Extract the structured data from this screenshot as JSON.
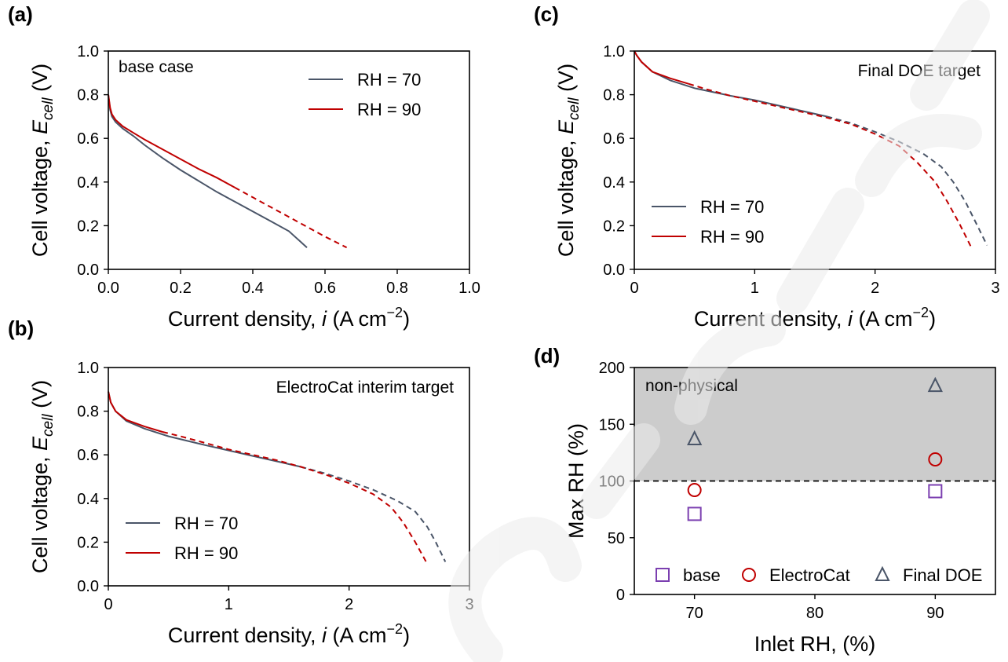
{
  "colors": {
    "rh70": "#4a5568",
    "rh90": "#c00000",
    "base": "#7b3fb0",
    "electrocat": "#c00000",
    "finaldoe": "#4a5568",
    "shade": "#cccccc"
  },
  "chart_data": [
    {
      "id": "a",
      "type": "line",
      "panel_label": "(a)",
      "annotation": "base case",
      "annotation_position": "top-left",
      "xlabel": "Current density, ",
      "xlabel_italic": "i",
      "xlabel_unit": " (A cm",
      "xlabel_sup": "−2",
      "xlabel_close": ")",
      "ylabel": "Cell voltage, ",
      "ylabel_italic": "E",
      "ylabel_sub": "cell",
      "ylabel_unit": " (V)",
      "xlim": [
        0,
        1.0
      ],
      "ylim": [
        0,
        1.0
      ],
      "xticks": [
        "0.0",
        "0.2",
        "0.4",
        "0.6",
        "0.8",
        "1.0"
      ],
      "xtick_values": [
        0,
        0.2,
        0.4,
        0.6,
        0.8,
        1.0
      ],
      "yticks": [
        "0.0",
        "0.2",
        "0.4",
        "0.6",
        "0.8",
        "1.0"
      ],
      "ytick_values": [
        0,
        0.2,
        0.4,
        0.6,
        0.8,
        1.0
      ],
      "legend_position": "top-right",
      "series": [
        {
          "name": "RH = 70",
          "color_key": "rh70",
          "solid": [
            [
              0,
              0.8
            ],
            [
              0.005,
              0.73
            ],
            [
              0.01,
              0.7
            ],
            [
              0.02,
              0.675
            ],
            [
              0.04,
              0.645
            ],
            [
              0.07,
              0.61
            ],
            [
              0.1,
              0.57
            ],
            [
              0.15,
              0.51
            ],
            [
              0.2,
              0.455
            ],
            [
              0.25,
              0.405
            ],
            [
              0.3,
              0.355
            ],
            [
              0.35,
              0.31
            ],
            [
              0.4,
              0.265
            ],
            [
              0.45,
              0.22
            ],
            [
              0.5,
              0.175
            ],
            [
              0.55,
              0.1
            ]
          ],
          "dashed": []
        },
        {
          "name": "RH = 90",
          "color_key": "rh90",
          "solid": [
            [
              0,
              0.8
            ],
            [
              0.005,
              0.74
            ],
            [
              0.01,
              0.71
            ],
            [
              0.02,
              0.685
            ],
            [
              0.04,
              0.655
            ],
            [
              0.07,
              0.625
            ],
            [
              0.1,
              0.595
            ],
            [
              0.15,
              0.55
            ],
            [
              0.2,
              0.505
            ],
            [
              0.25,
              0.46
            ],
            [
              0.3,
              0.42
            ],
            [
              0.35,
              0.375
            ]
          ],
          "dashed": [
            [
              0.35,
              0.375
            ],
            [
              0.4,
              0.33
            ],
            [
              0.45,
              0.285
            ],
            [
              0.5,
              0.24
            ],
            [
              0.55,
              0.195
            ],
            [
              0.6,
              0.15
            ],
            [
              0.66,
              0.1
            ]
          ]
        }
      ]
    },
    {
      "id": "b",
      "type": "line",
      "panel_label": "(b)",
      "annotation": "ElectroCat interim target",
      "annotation_position": "top-right",
      "xlabel": "Current density, ",
      "xlabel_italic": "i",
      "xlabel_unit": " (A cm",
      "xlabel_sup": "−2",
      "xlabel_close": ")",
      "ylabel": "Cell voltage, ",
      "ylabel_italic": "E",
      "ylabel_sub": "cell",
      "ylabel_unit": " (V)",
      "xlim": [
        0,
        3
      ],
      "ylim": [
        0,
        1.0
      ],
      "xticks": [
        "0",
        "1",
        "2",
        "3"
      ],
      "xtick_values": [
        0,
        1,
        2,
        3
      ],
      "yticks": [
        "0.0",
        "0.2",
        "0.4",
        "0.6",
        "0.8",
        "1.0"
      ],
      "ytick_values": [
        0,
        0.2,
        0.4,
        0.6,
        0.8,
        1.0
      ],
      "legend_position": "bottom-left",
      "series": [
        {
          "name": "RH = 70",
          "color_key": "rh70",
          "solid": [
            [
              0,
              0.89
            ],
            [
              0.02,
              0.84
            ],
            [
              0.06,
              0.8
            ],
            [
              0.15,
              0.755
            ],
            [
              0.3,
              0.72
            ],
            [
              0.5,
              0.685
            ],
            [
              0.8,
              0.645
            ],
            [
              1.0,
              0.62
            ],
            [
              1.2,
              0.595
            ],
            [
              1.4,
              0.57
            ],
            [
              1.6,
              0.545
            ]
          ],
          "dashed": [
            [
              1.6,
              0.545
            ],
            [
              1.8,
              0.515
            ],
            [
              2.0,
              0.48
            ],
            [
              2.2,
              0.44
            ],
            [
              2.4,
              0.39
            ],
            [
              2.55,
              0.34
            ],
            [
              2.65,
              0.27
            ],
            [
              2.72,
              0.2
            ],
            [
              2.8,
              0.11
            ]
          ]
        },
        {
          "name": "RH = 90",
          "color_key": "rh90",
          "solid": [
            [
              0,
              0.89
            ],
            [
              0.02,
              0.84
            ],
            [
              0.06,
              0.8
            ],
            [
              0.15,
              0.76
            ],
            [
              0.3,
              0.73
            ],
            [
              0.45,
              0.705
            ]
          ],
          "dashed": [
            [
              0.45,
              0.705
            ],
            [
              0.6,
              0.685
            ],
            [
              0.8,
              0.655
            ],
            [
              1.0,
              0.625
            ],
            [
              1.2,
              0.6
            ],
            [
              1.4,
              0.575
            ],
            [
              1.6,
              0.545
            ],
            [
              1.8,
              0.51
            ],
            [
              2.0,
              0.47
            ],
            [
              2.2,
              0.42
            ],
            [
              2.35,
              0.36
            ],
            [
              2.45,
              0.29
            ],
            [
              2.55,
              0.2
            ],
            [
              2.65,
              0.1
            ]
          ]
        }
      ]
    },
    {
      "id": "c",
      "type": "line",
      "panel_label": "(c)",
      "annotation": "Final DOE target",
      "annotation_position": "top-right",
      "xlabel": "Current density, ",
      "xlabel_italic": "i",
      "xlabel_unit": " (A cm",
      "xlabel_sup": "−2",
      "xlabel_close": ")",
      "ylabel": "Cell voltage, ",
      "ylabel_italic": "E",
      "ylabel_sub": "cell",
      "ylabel_unit": " (V)",
      "xlim": [
        0,
        3
      ],
      "ylim": [
        0,
        1.0
      ],
      "xticks": [
        "0",
        "1",
        "2",
        "3"
      ],
      "xtick_values": [
        0,
        1,
        2,
        3
      ],
      "yticks": [
        "0.0",
        "0.2",
        "0.4",
        "0.6",
        "0.8",
        "1.0"
      ],
      "ytick_values": [
        0,
        0.2,
        0.4,
        0.6,
        0.8,
        1.0
      ],
      "legend_position": "bottom-left",
      "series": [
        {
          "name": "RH = 70",
          "color_key": "rh70",
          "solid": [
            [
              0,
              1.0
            ],
            [
              0.02,
              0.98
            ],
            [
              0.06,
              0.95
            ],
            [
              0.15,
              0.905
            ],
            [
              0.3,
              0.865
            ],
            [
              0.5,
              0.83
            ],
            [
              0.8,
              0.795
            ],
            [
              1.0,
              0.775
            ],
            [
              1.2,
              0.75
            ],
            [
              1.4,
              0.725
            ],
            [
              1.6,
              0.7
            ]
          ],
          "dashed": [
            [
              1.6,
              0.7
            ],
            [
              1.8,
              0.67
            ],
            [
              2.0,
              0.63
            ],
            [
              2.2,
              0.585
            ],
            [
              2.4,
              0.53
            ],
            [
              2.55,
              0.47
            ],
            [
              2.65,
              0.4
            ],
            [
              2.75,
              0.31
            ],
            [
              2.85,
              0.2
            ],
            [
              2.93,
              0.11
            ]
          ]
        },
        {
          "name": "RH = 90",
          "color_key": "rh90",
          "solid": [
            [
              0,
              1.0
            ],
            [
              0.02,
              0.98
            ],
            [
              0.06,
              0.95
            ],
            [
              0.15,
              0.905
            ],
            [
              0.3,
              0.875
            ],
            [
              0.45,
              0.85
            ]
          ],
          "dashed": [
            [
              0.45,
              0.85
            ],
            [
              0.6,
              0.825
            ],
            [
              0.8,
              0.795
            ],
            [
              1.0,
              0.77
            ],
            [
              1.2,
              0.745
            ],
            [
              1.4,
              0.72
            ],
            [
              1.6,
              0.695
            ],
            [
              1.8,
              0.665
            ],
            [
              2.0,
              0.62
            ],
            [
              2.2,
              0.565
            ],
            [
              2.35,
              0.49
            ],
            [
              2.5,
              0.4
            ],
            [
              2.6,
              0.31
            ],
            [
              2.7,
              0.21
            ],
            [
              2.8,
              0.1
            ]
          ]
        }
      ]
    },
    {
      "id": "d",
      "type": "scatter",
      "panel_label": "(d)",
      "annotation": "non-physical",
      "annotation_position": "top-left",
      "xlabel": "Inlet RH, (%)",
      "ylabel": "Max RH (%)",
      "xlim": [
        65,
        95
      ],
      "ylim": [
        0,
        200
      ],
      "xticks": [
        "70",
        "80",
        "90"
      ],
      "xtick_values": [
        70,
        80,
        90
      ],
      "yticks": [
        "0",
        "50",
        "100",
        "150",
        "200"
      ],
      "ytick_values": [
        0,
        50,
        100,
        150,
        200
      ],
      "shaded_region": [
        100,
        200
      ],
      "reference_line": 100,
      "legend_position": "bottom",
      "series": [
        {
          "name": "base",
          "marker": "square",
          "color_key": "base",
          "x": [
            70,
            90
          ],
          "y": [
            71,
            91
          ]
        },
        {
          "name": "ElectroCat",
          "marker": "circle",
          "color_key": "electrocat",
          "x": [
            70,
            90
          ],
          "y": [
            92,
            119
          ]
        },
        {
          "name": "Final DOE",
          "marker": "triangle",
          "color_key": "finaldoe",
          "x": [
            70,
            90
          ],
          "y": [
            137,
            184
          ]
        }
      ]
    }
  ]
}
